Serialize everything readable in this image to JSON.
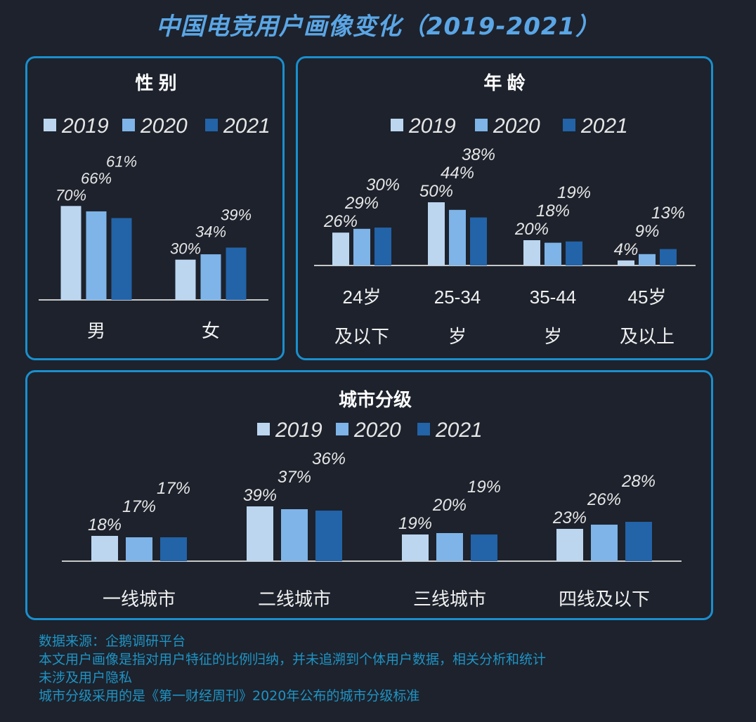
{
  "title": "中国电竞用户画像变化（2019-2021）",
  "colors": {
    "2019": "#bcd6f0",
    "2020": "#7eb4e8",
    "2021": "#2363a8",
    "border": "#1a8fce",
    "title": "#5aa6e6",
    "background": "#1d222c"
  },
  "chart_data": [
    {
      "type": "bar",
      "title": "性 别",
      "categories": [
        [
          "男"
        ],
        [
          "女"
        ]
      ],
      "series": [
        {
          "name": "2019",
          "values": [
            70,
            30
          ]
        },
        {
          "name": "2020",
          "values": [
            66,
            34
          ]
        },
        {
          "name": "2021",
          "values": [
            61,
            39
          ]
        }
      ],
      "value_labels": [
        [
          "70%",
          "30%"
        ],
        [
          "66%",
          "34%"
        ],
        [
          "61%",
          "39%"
        ]
      ],
      "legend": "top",
      "grid": false
    },
    {
      "type": "bar",
      "title": "年 龄",
      "categories": [
        [
          "24岁",
          "及以下"
        ],
        [
          "25-34",
          "岁"
        ],
        [
          "35-44",
          "岁"
        ],
        [
          "45岁",
          "及以上"
        ]
      ],
      "series": [
        {
          "name": "2019",
          "values": [
            26,
            50,
            20,
            4
          ]
        },
        {
          "name": "2020",
          "values": [
            29,
            44,
            18,
            9
          ]
        },
        {
          "name": "2021",
          "values": [
            30,
            38,
            19,
            13
          ]
        }
      ],
      "value_labels": [
        [
          "26%",
          "50%",
          "20%",
          "4%"
        ],
        [
          "29%",
          "44%",
          "18%",
          "9%"
        ],
        [
          "30%",
          "38%",
          "19%",
          "13%"
        ]
      ],
      "legend": "top",
      "grid": false
    },
    {
      "type": "bar",
      "title": "城市分级",
      "categories": [
        [
          "一线城市"
        ],
        [
          "二线城市"
        ],
        [
          "三线城市"
        ],
        [
          "四线及以下"
        ]
      ],
      "series": [
        {
          "name": "2019",
          "values": [
            18,
            39,
            19,
            23
          ]
        },
        {
          "name": "2020",
          "values": [
            17,
            37,
            20,
            26
          ]
        },
        {
          "name": "2021",
          "values": [
            17,
            36,
            19,
            28
          ]
        }
      ],
      "value_labels": [
        [
          "18%",
          "39%",
          "19%",
          "23%"
        ],
        [
          "17%",
          "37%",
          "20%",
          "26%"
        ],
        [
          "17%",
          "36%",
          "19%",
          "28%"
        ]
      ],
      "legend": "top",
      "grid": false
    }
  ],
  "footnotes": [
    "数据来源：企鹅调研平台",
    "本文用户画像是指对用户特征的比例归纳，并未追溯到个体用户数据，相关分析和统计",
    "未涉及用户隐私",
    "城市分级采用的是《第一财经周刊》2020年公布的城市分级标准"
  ]
}
